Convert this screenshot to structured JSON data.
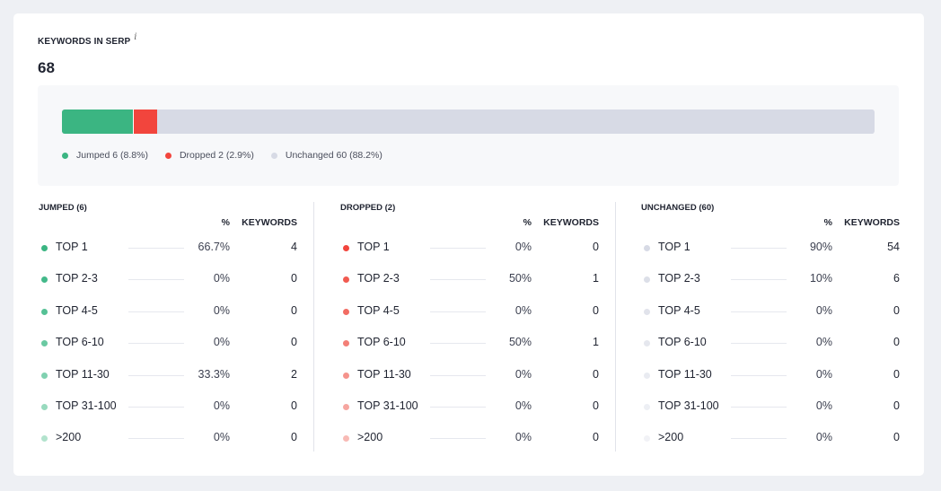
{
  "widget": {
    "title": "KEYWORDS IN SERP",
    "info_icon": "i",
    "total": "68"
  },
  "summary": {
    "segments": [
      {
        "name": "jumped",
        "fraction": 0.088,
        "color": "#3bb582"
      },
      {
        "name": "dropped",
        "fraction": 0.029,
        "color": "#f2453d"
      },
      {
        "name": "unchanged",
        "fraction": 0.882,
        "color": "#d7dae5"
      }
    ],
    "legend": [
      {
        "label": "Jumped 6 (8.8%)",
        "color": "#3bb582"
      },
      {
        "label": "Dropped 2 (2.9%)",
        "color": "#f2453d"
      },
      {
        "label": "Unchanged 60 (88.2%)",
        "color": "#d7dae5"
      }
    ]
  },
  "columns": [
    {
      "title": "JUMPED (6)",
      "pct_header": "%",
      "kw_header": "KEYWORDS",
      "rows": [
        {
          "label": "TOP 1",
          "pct": "66.7%",
          "kw": "4",
          "color": "#3bb582"
        },
        {
          "label": "TOP 2-3",
          "pct": "0%",
          "kw": "0",
          "color": "#43b98a"
        },
        {
          "label": "TOP 4-5",
          "pct": "0%",
          "kw": "0",
          "color": "#55c195"
        },
        {
          "label": "TOP 6-10",
          "pct": "0%",
          "kw": "0",
          "color": "#6ac9a2"
        },
        {
          "label": "TOP 11-30",
          "pct": "33.3%",
          "kw": "2",
          "color": "#80d1b0"
        },
        {
          "label": "TOP 31-100",
          "pct": "0%",
          "kw": "0",
          "color": "#98dabe"
        },
        {
          "label": ">200",
          "pct": "0%",
          "kw": "0",
          "color": "#b2e3cd"
        }
      ]
    },
    {
      "title": "DROPPED (2)",
      "pct_header": "%",
      "kw_header": "KEYWORDS",
      "rows": [
        {
          "label": "TOP 1",
          "pct": "0%",
          "kw": "0",
          "color": "#f2453d"
        },
        {
          "label": "TOP 2-3",
          "pct": "50%",
          "kw": "1",
          "color": "#f15a50"
        },
        {
          "label": "TOP 4-5",
          "pct": "0%",
          "kw": "0",
          "color": "#f26c63"
        },
        {
          "label": "TOP 6-10",
          "pct": "50%",
          "kw": "1",
          "color": "#f37f77"
        },
        {
          "label": "TOP 11-30",
          "pct": "0%",
          "kw": "0",
          "color": "#f5938c"
        },
        {
          "label": "TOP 31-100",
          "pct": "0%",
          "kw": "0",
          "color": "#f6a6a0"
        },
        {
          "label": ">200",
          "pct": "0%",
          "kw": "0",
          "color": "#f8bab5"
        }
      ]
    },
    {
      "title": "UNCHANGED (60)",
      "pct_header": "%",
      "kw_header": "KEYWORDS",
      "rows": [
        {
          "label": "TOP 1",
          "pct": "90%",
          "kw": "54",
          "color": "#d7dae5"
        },
        {
          "label": "TOP 2-3",
          "pct": "10%",
          "kw": "6",
          "color": "#dcdfe8"
        },
        {
          "label": "TOP 4-5",
          "pct": "0%",
          "kw": "0",
          "color": "#e1e3eb"
        },
        {
          "label": "TOP 6-10",
          "pct": "0%",
          "kw": "0",
          "color": "#e5e7ee"
        },
        {
          "label": "TOP 11-30",
          "pct": "0%",
          "kw": "0",
          "color": "#e9ebf1"
        },
        {
          "label": "TOP 31-100",
          "pct": "0%",
          "kw": "0",
          "color": "#edeff4"
        },
        {
          "label": ">200",
          "pct": "0%",
          "kw": "0",
          "color": "#f1f2f6"
        }
      ]
    }
  ]
}
